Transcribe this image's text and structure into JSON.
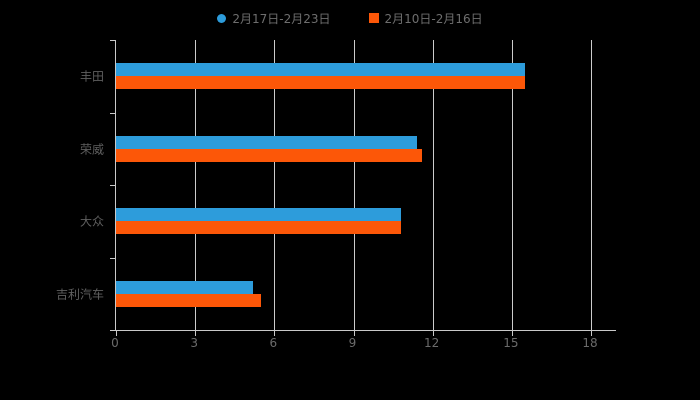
{
  "legend": {
    "items": [
      {
        "label": "2月17日-2月23日",
        "color": "#2d9cdb",
        "marker": "circle"
      },
      {
        "label": "2月10日-2月16日",
        "color": "#fc5708",
        "marker": "square"
      }
    ]
  },
  "chart_data": {
    "type": "bar",
    "orientation": "horizontal",
    "title": "",
    "xlabel": "",
    "ylabel": "",
    "categories": [
      "丰田",
      "荣威",
      "大众",
      "吉利汽车"
    ],
    "series": [
      {
        "name": "2月17日-2月23日",
        "color": "#2d9cdb",
        "values": [
          15.5,
          11.4,
          10.8,
          5.2
        ]
      },
      {
        "name": "2月10日-2月16日",
        "color": "#fc5708",
        "values": [
          15.5,
          11.6,
          10.8,
          5.5
        ]
      }
    ],
    "xlim": [
      0,
      18
    ],
    "xticks": [
      0,
      3,
      6,
      9,
      12,
      15,
      18
    ],
    "grid": "vertical",
    "legend_position": "top"
  }
}
